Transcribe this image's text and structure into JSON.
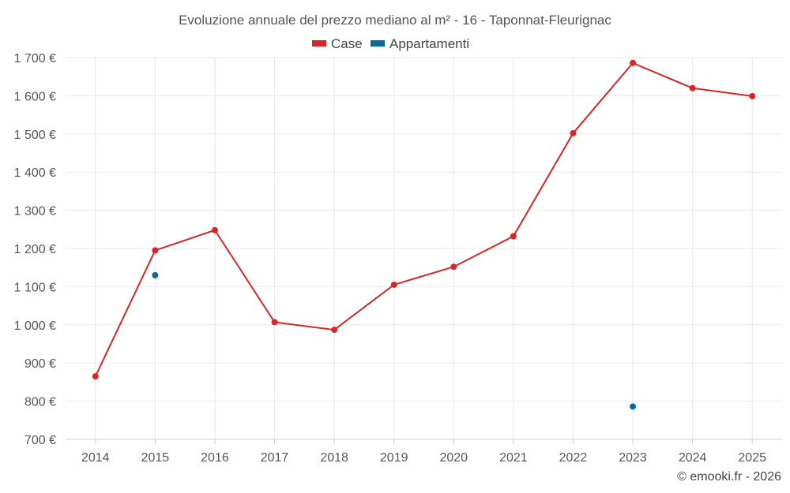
{
  "chart_data": {
    "type": "line",
    "title": "Evoluzione annuale del prezzo mediano al m² - 16 - Taponnat-Fleurignac",
    "xlabel": "",
    "ylabel": "",
    "categories": [
      "2014",
      "2015",
      "2016",
      "2017",
      "2018",
      "2019",
      "2020",
      "2021",
      "2022",
      "2023",
      "2024",
      "2025"
    ],
    "ylim": [
      700,
      1700
    ],
    "yticks": [
      700,
      800,
      900,
      1000,
      1100,
      1200,
      1300,
      1400,
      1500,
      1600,
      1700
    ],
    "ytick_labels": [
      "700 €",
      "800 €",
      "900 €",
      "1 000 €",
      "1 100 €",
      "1 200 €",
      "1 300 €",
      "1 400 €",
      "1 500 €",
      "1 600 €",
      "1 700 €"
    ],
    "grid": true,
    "legend_position": "top-center",
    "series": [
      {
        "name": "Case",
        "color": "#d62728",
        "values": [
          865,
          1195,
          1248,
          1007,
          987,
          1105,
          1152,
          1232,
          1502,
          1686,
          1620,
          1599
        ]
      },
      {
        "name": "Appartamenti",
        "color": "#0a6aa1",
        "values": [
          null,
          1130,
          null,
          null,
          null,
          null,
          null,
          null,
          null,
          786,
          null,
          null
        ]
      }
    ],
    "credit": "© emooki.fr - 2026"
  }
}
